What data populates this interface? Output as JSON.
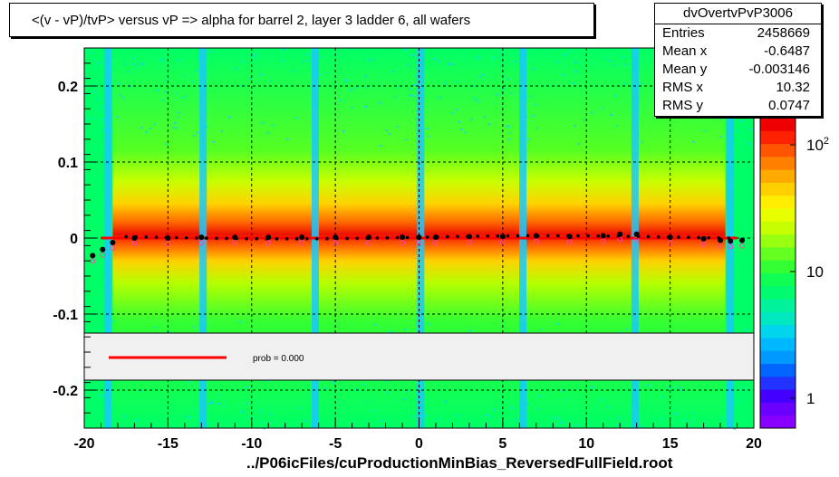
{
  "title": "<(v - vP)/tvP> versus   vP => alpha for barrel 2, layer 3 ladder 6, all wafers",
  "stats": {
    "name": "dvOvertvPvP3006",
    "rows": [
      {
        "key": "Entries",
        "value": "2458669"
      },
      {
        "key": "Mean x",
        "value": "-0.6487"
      },
      {
        "key": "Mean y",
        "value": "-0.003146"
      },
      {
        "key": "RMS x",
        "value": "10.32"
      },
      {
        "key": "RMS y",
        "value": "0.0747"
      }
    ]
  },
  "legend": {
    "fit_label": "prob = 0.000",
    "fit_color": "#ff0000"
  },
  "footer": "../P06icFiles/cuProductionMinBias_ReversedFullField.root",
  "colors": {
    "background": "#00ff66",
    "profile_marker": "#000000",
    "fit_line": "#ff0000"
  },
  "chart_data": {
    "type": "heatmap",
    "xlim": [
      -20,
      20
    ],
    "ylim": [
      -0.25,
      0.25
    ],
    "x_ticks": [
      -20,
      -15,
      -10,
      -5,
      0,
      5,
      10,
      15,
      20
    ],
    "y_ticks": [
      -0.2,
      -0.1,
      0,
      0.1,
      0.2
    ],
    "y_tick_labels": [
      "-0.2",
      "-0.1",
      "0",
      "0.1",
      "0.2"
    ],
    "grid": true,
    "colorbar": {
      "scale": "log",
      "ticks": [
        "1",
        "10",
        "10^2"
      ]
    },
    "dead_strips_x": [
      -18.6,
      -12.9,
      -6.2,
      0.1,
      6.2,
      12.9,
      18.6
    ],
    "profile": {
      "x": [
        -19.5,
        -18.9,
        -18.3,
        -17.0,
        -15.0,
        -13.0,
        -11.0,
        -9.0,
        -7.0,
        -5.0,
        -3.0,
        -1.0,
        0.0,
        1.0,
        3.0,
        5.0,
        7.0,
        9.0,
        11.0,
        12.0,
        13.0,
        15.0,
        17.0,
        18.0,
        18.6,
        19.3
      ],
      "y": [
        -0.023,
        -0.015,
        -0.006,
        0.0,
        0.0,
        0.001,
        0.001,
        0.001,
        0.001,
        0.001,
        0.001,
        0.001,
        0.001,
        0.001,
        0.002,
        0.002,
        0.003,
        0.002,
        0.003,
        0.005,
        0.005,
        0.001,
        -0.001,
        -0.003,
        -0.004,
        -0.003
      ]
    },
    "fit_line": {
      "x": [
        -19.0,
        19.0
      ],
      "y": [
        0.0,
        0.0
      ]
    }
  }
}
